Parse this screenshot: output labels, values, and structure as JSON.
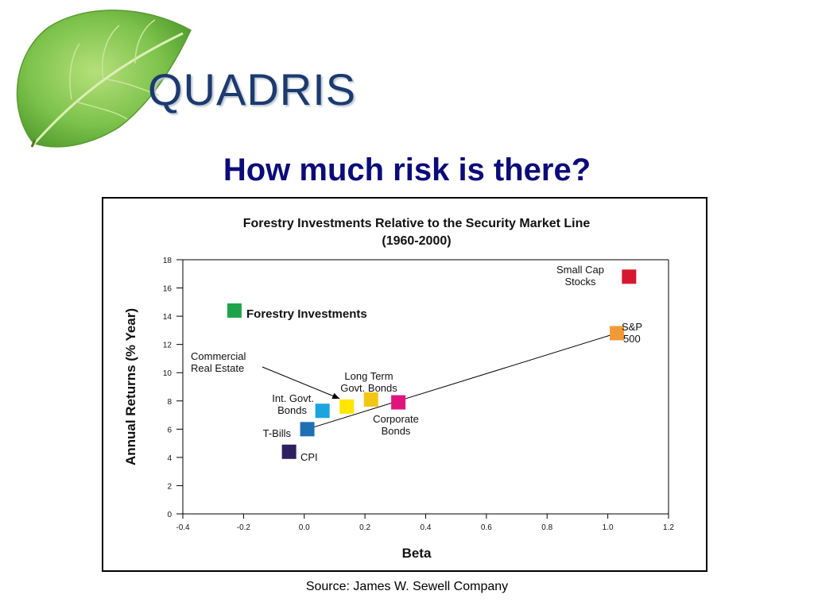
{
  "logo": {
    "text": "QUADRIS"
  },
  "slide": {
    "title": "How much risk is there?"
  },
  "source": "Source: James W. Sewell Company",
  "colors": {
    "title": "#0b0b7a",
    "logo_text": "#1c3a6e",
    "leaf": "#7cc24b",
    "line": "#000000"
  },
  "chart_data": {
    "type": "scatter",
    "title": "Forestry Investments Relative to the Security Market Line",
    "subtitle": "(1960-2000)",
    "xlabel": "Beta",
    "ylabel": "Annual Returns (% Year)",
    "xlim": [
      -0.4,
      1.2
    ],
    "ylim": [
      0,
      18
    ],
    "xticks": [
      "-0.4",
      "-0.2",
      "0.0",
      "0.2",
      "0.4",
      "0.6",
      "0.8",
      "1.0",
      "1.2"
    ],
    "yticks": [
      "0",
      "2",
      "4",
      "6",
      "8",
      "10",
      "12",
      "14",
      "16",
      "18"
    ],
    "grid": false,
    "points": [
      {
        "name": "Forestry Investments",
        "x": -0.23,
        "y": 14.4,
        "color": "#1fa34a"
      },
      {
        "name": "Small Cap Stocks",
        "x": 1.07,
        "y": 16.8,
        "color": "#d7172f"
      },
      {
        "name": "S&P 500",
        "x": 1.03,
        "y": 12.8,
        "color": "#f09a37"
      },
      {
        "name": "Commercial Real Estate",
        "x": 0.14,
        "y": 7.6,
        "color": "#ffe600"
      },
      {
        "name": "Long Term Govt. Bonds",
        "x": 0.22,
        "y": 8.1,
        "color": "#f2c614"
      },
      {
        "name": "Corporate Bonds",
        "x": 0.31,
        "y": 7.9,
        "color": "#e0147d"
      },
      {
        "name": "Int. Govt. Bonds",
        "x": 0.06,
        "y": 7.3,
        "color": "#1aa5de"
      },
      {
        "name": "T-Bills",
        "x": 0.01,
        "y": 6.0,
        "color": "#1f6fb3"
      },
      {
        "name": "CPI",
        "x": -0.05,
        "y": 4.4,
        "color": "#2e1f5e"
      }
    ],
    "security_market_line": {
      "from": [
        0.01,
        6.0
      ],
      "to": [
        1.03,
        12.8
      ]
    },
    "labels": {
      "forestry": "Forestry Investments",
      "small_cap_1": "Small Cap",
      "small_cap_2": "Stocks",
      "sp_1": "S&P",
      "sp_2": "500",
      "cre_1": "Commercial",
      "cre_2": "Real Estate",
      "ltgb_1": "Long Term",
      "ltgb_2": "Govt. Bonds",
      "igb_1": "Int. Govt.",
      "igb_2": "Bonds",
      "corp_1": "Corporate",
      "corp_2": "Bonds",
      "tbills": "T-Bills",
      "cpi": "CPI"
    }
  }
}
